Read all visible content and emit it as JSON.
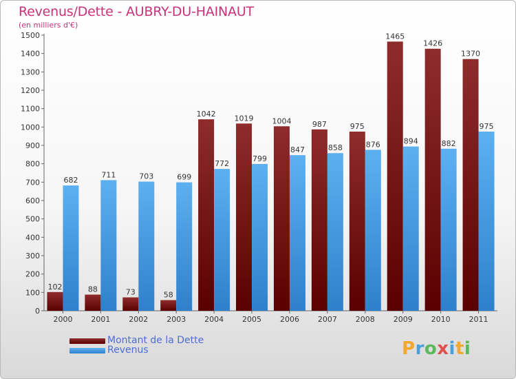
{
  "header": {
    "title": "Revenus/Dette - AUBRY-DU-HAINAUT",
    "subtitle": "(en milliers d'€)"
  },
  "legend": {
    "items": [
      {
        "label": "Montant de la Dette",
        "color": "#7a1010"
      },
      {
        "label": "Revenus",
        "color": "#4da3e8"
      }
    ]
  },
  "brand": {
    "text": "Proxiti",
    "letters": [
      "P",
      "r",
      "o",
      "x",
      "i",
      "t",
      "i"
    ]
  },
  "chart_data": {
    "type": "bar",
    "title": "Revenus/Dette - AUBRY-DU-HAINAUT",
    "ylabel": "(en milliers d'€)",
    "xlabel": "",
    "ylim": [
      0,
      1500
    ],
    "ytick_step": 100,
    "grid": false,
    "legend_position": "bottom-left",
    "categories": [
      "2000",
      "2001",
      "2002",
      "2003",
      "2004",
      "2005",
      "2006",
      "2007",
      "2008",
      "2009",
      "2010",
      "2011"
    ],
    "series": [
      {
        "name": "Montant de la Dette",
        "color": "#7a1010",
        "values": [
          102,
          88,
          73,
          58,
          1042,
          1019,
          1004,
          987,
          975,
          1465,
          1426,
          1370
        ]
      },
      {
        "name": "Revenus",
        "color": "#4da3e8",
        "values": [
          682,
          711,
          703,
          699,
          772,
          799,
          847,
          858,
          876,
          894,
          882,
          975
        ]
      }
    ]
  }
}
